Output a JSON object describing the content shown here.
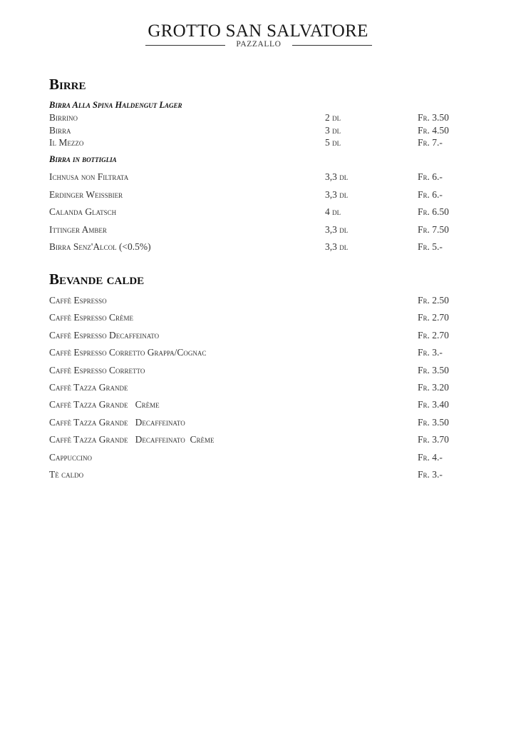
{
  "header": {
    "title": "GROTTO SAN SALVATORE",
    "subtitle": "PAZZALLO"
  },
  "birre": {
    "heading": "Birre",
    "spina": {
      "label": "Birra Alla Spina Haldengut Lager",
      "items": [
        {
          "name": "Birrino",
          "size": "2 dl",
          "price": "Fr. 3.50"
        },
        {
          "name": "Birra",
          "size": "3 dl",
          "price": "Fr. 4.50"
        },
        {
          "name": "Il Mezzo",
          "size": "5 dl",
          "price": "Fr. 7.-"
        }
      ]
    },
    "bottiglia": {
      "label": "Birra in bottiglia",
      "items": [
        {
          "name": "Ichnusa non Filtrata",
          "size": "3,3 dl",
          "price": "Fr. 6.-"
        },
        {
          "name": "Erdinger Weissbier",
          "size": "3,3 dl",
          "price": "Fr. 6.-"
        },
        {
          "name": "Calanda Glatsch",
          "size": "4 dl",
          "price": "Fr. 6.50"
        },
        {
          "name": "Ittinger Amber",
          "size": "3,3 dl",
          "price": "Fr. 7.50"
        },
        {
          "name": "Birra Senz'Alcol (<0.5%)",
          "size": "3,3 dl",
          "price": "Fr. 5.-"
        }
      ]
    }
  },
  "bevande": {
    "heading": "Bevande calde",
    "items": [
      {
        "name": "Caffè Espresso",
        "price": "Fr. 2.50"
      },
      {
        "name": "Caffè Espresso Crème",
        "price": "Fr. 2.70"
      },
      {
        "name": "Caffè Espresso Decaffeinato",
        "price": "Fr. 2.70"
      },
      {
        "name": "Caffè Espresso Corretto Grappa/Cognac",
        "price": "Fr. 3.-"
      },
      {
        "name": "Caffè Espresso Corretto",
        "price": "Fr. 3.50"
      },
      {
        "name": "Caffè Tazza Grande",
        "price": "Fr. 3.20"
      },
      {
        "name": "Caffè Tazza Grande   Crème",
        "price": "Fr. 3.40"
      },
      {
        "name": "Caffè Tazza Grande   Decaffeinato",
        "price": "Fr. 3.50"
      },
      {
        "name": "Caffè Tazza Grande   Decaffeinato  Crème",
        "price": "Fr. 3.70"
      },
      {
        "name": "Cappuccino",
        "price": "Fr. 4.-"
      },
      {
        "name": "Tè caldo",
        "price": "Fr. 3.-"
      }
    ]
  }
}
